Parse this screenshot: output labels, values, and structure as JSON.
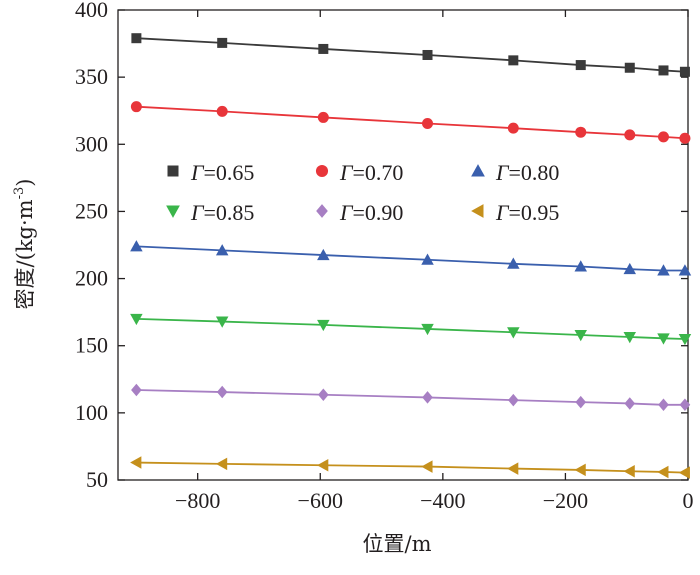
{
  "chart_data": {
    "type": "line",
    "xlabel": "位置/m",
    "ylabel_parts": {
      "main": "密度/(kg·m",
      "sup": "-3",
      "close": ")"
    },
    "xlim": [
      -930,
      0
    ],
    "ylim": [
      50,
      400
    ],
    "xticks": [
      {
        "value": -800,
        "label": "−800"
      },
      {
        "value": -600,
        "label": "−600"
      },
      {
        "value": -400,
        "label": "−400"
      },
      {
        "value": -200,
        "label": "−200"
      },
      {
        "value": 0,
        "label": "0"
      }
    ],
    "yticks": [
      {
        "value": 50,
        "label": "50"
      },
      {
        "value": 100,
        "label": "100"
      },
      {
        "value": 150,
        "label": "150"
      },
      {
        "value": 200,
        "label": "200"
      },
      {
        "value": 250,
        "label": "250"
      },
      {
        "value": 300,
        "label": "300"
      },
      {
        "value": 350,
        "label": "350"
      },
      {
        "value": 400,
        "label": "400"
      }
    ],
    "legend_placement": "upper-middle",
    "legend_symbol": "Γ",
    "x": [
      -900,
      -760,
      -595,
      -425,
      -285,
      -175,
      -95,
      -40,
      -5
    ],
    "series": [
      {
        "name": "=0.65",
        "marker": "square",
        "color": "#3a3a3a",
        "values": [
          379,
          375.5,
          371,
          366.5,
          362.5,
          359,
          357,
          355,
          354
        ]
      },
      {
        "name": "=0.70",
        "marker": "circle",
        "color": "#e8353a",
        "values": [
          328,
          324.5,
          320,
          315.5,
          312,
          309,
          307,
          305.5,
          304.5
        ]
      },
      {
        "name": "=0.80",
        "marker": "triangle-up",
        "color": "#3a5fad",
        "values": [
          224,
          221,
          217.5,
          214,
          211,
          209,
          207,
          206,
          206
        ]
      },
      {
        "name": "=0.85",
        "marker": "triangle-down",
        "color": "#3ab54a",
        "values": [
          170,
          168,
          165.5,
          162.5,
          160,
          158,
          156.5,
          155.5,
          155
        ]
      },
      {
        "name": "=0.90",
        "marker": "diamond",
        "color": "#a77fc3",
        "values": [
          117,
          115.5,
          113.5,
          111.5,
          109.5,
          108,
          107,
          106,
          106
        ]
      },
      {
        "name": "=0.95",
        "marker": "triangle-left",
        "color": "#c5901c",
        "values": [
          63,
          62,
          61,
          60,
          58.5,
          57.5,
          56.5,
          56,
          55.5
        ]
      }
    ]
  }
}
